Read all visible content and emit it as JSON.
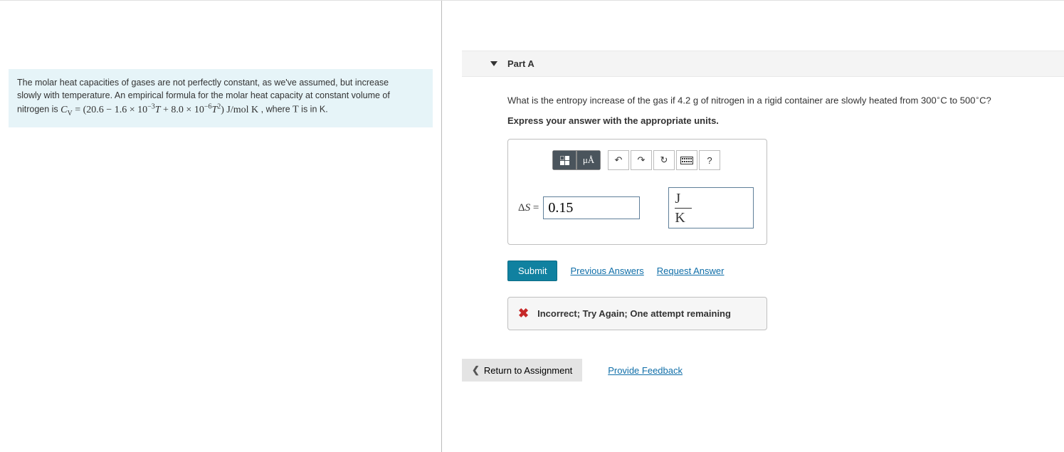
{
  "problem": {
    "intro_line1": "The molar heat capacities of gases are not perfectly constant, as we've assumed, but increase",
    "intro_line2": "slowly with temperature. An empirical formula for the molar heat capacity at constant volume of",
    "intro_line3_prefix": "nitrogen is ",
    "intro_line3_suffix_prefix": ", where ",
    "intro_line3_suffix_after": " is in K.",
    "formula_symbol": "C",
    "formula_subscript": "V",
    "formula_equals": " = (20.6 − 1.6 × 10",
    "formula_exp1": "−3",
    "formula_T1": "T",
    "formula_plus": " + 8.0 × 10",
    "formula_exp2": "−6",
    "formula_T2": "T",
    "formula_sq": "2",
    "formula_units": ") J/mol K",
    "var_T": "T"
  },
  "part": {
    "label": "Part A",
    "question_prefix": "What is the entropy increase of the gas if 4.2 g of nitrogen in a rigid container are slowly heated from 300",
    "deg1": "∘",
    "c1": "C",
    "mid": " to 500",
    "deg2": "∘",
    "c2": "C",
    "qmark": "?",
    "instruction": "Express your answer with the appropriate units."
  },
  "answer": {
    "lhs_delta": "Δ",
    "lhs_S": "S",
    "lhs_eq": " = ",
    "value": "0.15",
    "unit_top": "J",
    "unit_bottom": "K"
  },
  "toolbar": {
    "mu_label": "μÅ",
    "undo": "↶",
    "redo": "↷",
    "reset": "↻",
    "help": "?"
  },
  "actions": {
    "submit": "Submit",
    "previous": "Previous Answers",
    "request": "Request Answer"
  },
  "feedback": {
    "icon": "✖",
    "text": "Incorrect; Try Again; One attempt remaining"
  },
  "footer": {
    "return_chev": "❮",
    "return": "Return to Assignment",
    "provide": "Provide Feedback"
  }
}
